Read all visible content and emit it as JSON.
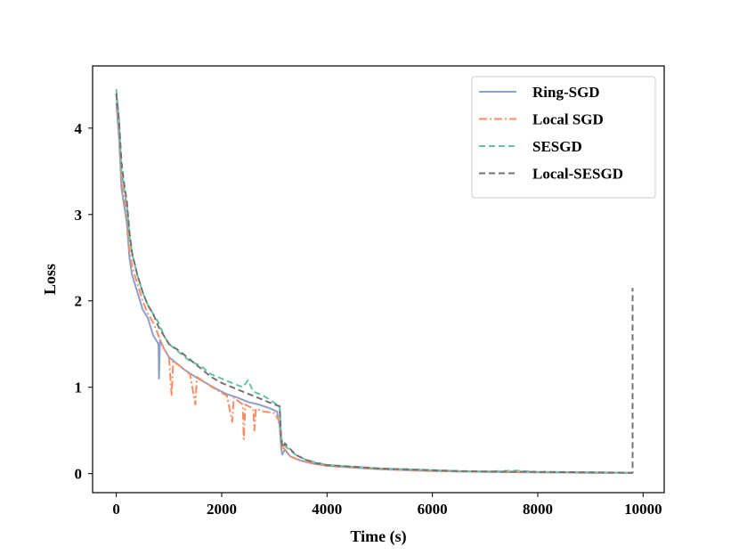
{
  "chart_data": {
    "type": "line",
    "title": "",
    "xlabel": "Time (s)",
    "ylabel": "Loss",
    "xlim": [
      -450,
      10400
    ],
    "ylim": [
      -0.22,
      4.72
    ],
    "xticks": [
      0,
      2000,
      4000,
      6000,
      8000,
      10000
    ],
    "xtick_labels": [
      "0",
      "2000",
      "4000",
      "6000",
      "8000",
      "10000"
    ],
    "yticks": [
      0,
      1,
      2,
      3,
      4
    ],
    "ytick_labels": [
      "0",
      "1",
      "2",
      "3",
      "4"
    ],
    "grid": false,
    "legend_position": "top-right",
    "series": [
      {
        "name": "Ring-SGD",
        "color": "#8da0cb",
        "dash": "solid",
        "points": [
          [
            0,
            4.3
          ],
          [
            50,
            3.9
          ],
          [
            100,
            3.3
          ],
          [
            150,
            3.1
          ],
          [
            200,
            2.9
          ],
          [
            250,
            2.5
          ],
          [
            300,
            2.3
          ],
          [
            400,
            2.1
          ],
          [
            500,
            1.9
          ],
          [
            600,
            1.8
          ],
          [
            700,
            1.6
          ],
          [
            800,
            1.5
          ],
          [
            810,
            1.1
          ],
          [
            830,
            1.55
          ],
          [
            900,
            1.45
          ],
          [
            1000,
            1.35
          ],
          [
            1100,
            1.3
          ],
          [
            1200,
            1.25
          ],
          [
            1300,
            1.2
          ],
          [
            1500,
            1.12
          ],
          [
            1700,
            1.05
          ],
          [
            1900,
            0.98
          ],
          [
            2100,
            0.92
          ],
          [
            2300,
            0.88
          ],
          [
            2500,
            0.83
          ],
          [
            2700,
            0.8
          ],
          [
            2900,
            0.76
          ],
          [
            3050,
            0.72
          ],
          [
            3100,
            0.55
          ],
          [
            3130,
            0.3
          ],
          [
            3150,
            0.22
          ],
          [
            3200,
            0.28
          ],
          [
            3300,
            0.2
          ],
          [
            3500,
            0.15
          ],
          [
            3700,
            0.12
          ],
          [
            4000,
            0.09
          ],
          [
            4500,
            0.07
          ],
          [
            5000,
            0.05
          ],
          [
            5500,
            0.04
          ],
          [
            6000,
            0.03
          ],
          [
            6500,
            0.025
          ],
          [
            7000,
            0.02
          ],
          [
            8000,
            0.015
          ],
          [
            9000,
            0.01
          ],
          [
            9800,
            0.01
          ]
        ]
      },
      {
        "name": "Local SGD",
        "color": "#fc8d62",
        "dash": "dashdot",
        "points": [
          [
            0,
            4.4
          ],
          [
            50,
            4.0
          ],
          [
            100,
            3.4
          ],
          [
            150,
            3.2
          ],
          [
            200,
            3.0
          ],
          [
            250,
            2.6
          ],
          [
            300,
            2.4
          ],
          [
            400,
            2.2
          ],
          [
            500,
            2.0
          ],
          [
            600,
            1.85
          ],
          [
            700,
            1.75
          ],
          [
            800,
            1.6
          ],
          [
            900,
            1.45
          ],
          [
            1000,
            1.35
          ],
          [
            1050,
            0.9
          ],
          [
            1080,
            1.3
          ],
          [
            1200,
            1.25
          ],
          [
            1400,
            1.15
          ],
          [
            1500,
            0.8
          ],
          [
            1530,
            1.12
          ],
          [
            1700,
            1.05
          ],
          [
            1900,
            0.97
          ],
          [
            2100,
            0.9
          ],
          [
            2200,
            0.6
          ],
          [
            2230,
            0.88
          ],
          [
            2400,
            0.8
          ],
          [
            2420,
            0.4
          ],
          [
            2450,
            0.8
          ],
          [
            2600,
            0.75
          ],
          [
            2620,
            0.5
          ],
          [
            2650,
            0.75
          ],
          [
            2800,
            0.72
          ],
          [
            3000,
            0.7
          ],
          [
            3100,
            0.6
          ],
          [
            3130,
            0.32
          ],
          [
            3200,
            0.28
          ],
          [
            3300,
            0.2
          ],
          [
            3500,
            0.15
          ],
          [
            3800,
            0.11
          ],
          [
            4000,
            0.09
          ],
          [
            4500,
            0.07
          ],
          [
            5000,
            0.05
          ],
          [
            5500,
            0.04
          ],
          [
            6000,
            0.03
          ],
          [
            7000,
            0.02
          ],
          [
            8000,
            0.015
          ],
          [
            9000,
            0.01
          ],
          [
            9800,
            0.01
          ]
        ]
      },
      {
        "name": "SESGD",
        "color": "#66c2a5",
        "dash": "dashed",
        "points": [
          [
            0,
            4.45
          ],
          [
            50,
            4.1
          ],
          [
            100,
            3.5
          ],
          [
            150,
            3.3
          ],
          [
            200,
            3.1
          ],
          [
            250,
            2.75
          ],
          [
            300,
            2.55
          ],
          [
            400,
            2.3
          ],
          [
            500,
            2.1
          ],
          [
            600,
            1.95
          ],
          [
            700,
            1.85
          ],
          [
            800,
            1.75
          ],
          [
            900,
            1.6
          ],
          [
            1000,
            1.5
          ],
          [
            1200,
            1.4
          ],
          [
            1400,
            1.3
          ],
          [
            1600,
            1.25
          ],
          [
            1800,
            1.15
          ],
          [
            2000,
            1.1
          ],
          [
            2200,
            1.05
          ],
          [
            2400,
            1.0
          ],
          [
            2500,
            1.08
          ],
          [
            2600,
            0.95
          ],
          [
            2800,
            0.9
          ],
          [
            3000,
            0.82
          ],
          [
            3100,
            0.78
          ],
          [
            3130,
            0.42
          ],
          [
            3160,
            0.35
          ],
          [
            3200,
            0.32
          ],
          [
            3400,
            0.22
          ],
          [
            3600,
            0.16
          ],
          [
            3800,
            0.13
          ],
          [
            4000,
            0.1
          ],
          [
            4500,
            0.08
          ],
          [
            5000,
            0.06
          ],
          [
            5500,
            0.05
          ],
          [
            6000,
            0.04
          ],
          [
            6500,
            0.03
          ],
          [
            7000,
            0.025
          ],
          [
            7600,
            0.035
          ],
          [
            8000,
            0.02
          ],
          [
            9000,
            0.015
          ],
          [
            9800,
            0.01
          ]
        ]
      },
      {
        "name": "Local-SESGD",
        "color": "#737373",
        "dash": "dashed",
        "points": [
          [
            0,
            4.4
          ],
          [
            50,
            4.1
          ],
          [
            100,
            3.6
          ],
          [
            150,
            3.35
          ],
          [
            200,
            3.15
          ],
          [
            250,
            2.8
          ],
          [
            300,
            2.55
          ],
          [
            400,
            2.3
          ],
          [
            500,
            2.1
          ],
          [
            600,
            1.95
          ],
          [
            700,
            1.85
          ],
          [
            800,
            1.7
          ],
          [
            900,
            1.6
          ],
          [
            1000,
            1.5
          ],
          [
            1200,
            1.42
          ],
          [
            1400,
            1.32
          ],
          [
            1600,
            1.22
          ],
          [
            1800,
            1.12
          ],
          [
            2000,
            1.05
          ],
          [
            2200,
            1.0
          ],
          [
            2400,
            0.95
          ],
          [
            2600,
            0.9
          ],
          [
            2800,
            0.85
          ],
          [
            3000,
            0.8
          ],
          [
            3100,
            0.78
          ],
          [
            3130,
            0.4
          ],
          [
            3160,
            0.3
          ],
          [
            3200,
            0.35
          ],
          [
            3400,
            0.22
          ],
          [
            3600,
            0.16
          ],
          [
            3800,
            0.12
          ],
          [
            4000,
            0.1
          ],
          [
            4500,
            0.08
          ],
          [
            5000,
            0.06
          ],
          [
            5500,
            0.05
          ],
          [
            6000,
            0.04
          ],
          [
            6500,
            0.03
          ],
          [
            7000,
            0.025
          ],
          [
            8000,
            0.02
          ],
          [
            9000,
            0.015
          ],
          [
            9790,
            0.01
          ],
          [
            9800,
            0.01
          ],
          [
            9800,
            2.15
          ]
        ]
      }
    ]
  }
}
